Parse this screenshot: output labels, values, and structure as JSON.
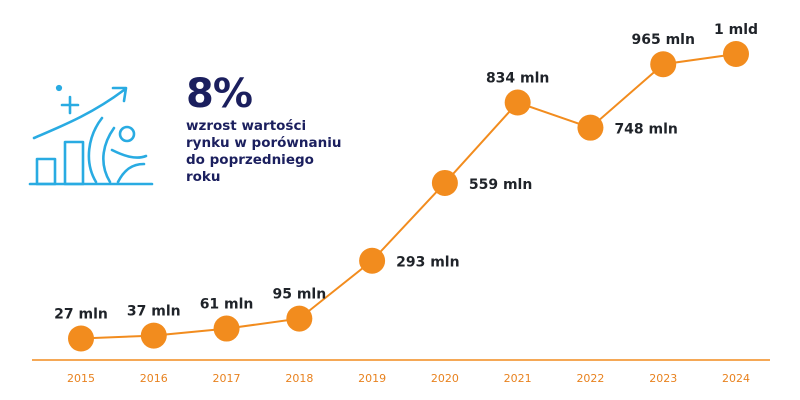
{
  "colors": {
    "accent": "#f28c1e",
    "axis": "#f28c1e",
    "line": "#f28c1e",
    "tick_text": "#e8821f",
    "label_text": "#1f2329",
    "headline": "#1b1f5e",
    "icon": "#29abe2"
  },
  "stat": {
    "value": "8%",
    "description_lines": [
      "wzrost wartości",
      "rynku w porównaniu",
      "do poprzedniego",
      "roku"
    ],
    "icon": "growth-chart-person-icon"
  },
  "chart_data": {
    "type": "line",
    "title": "",
    "xlabel": "",
    "ylabel": "",
    "categories": [
      "2015",
      "2016",
      "2017",
      "2018",
      "2019",
      "2020",
      "2021",
      "2022",
      "2023",
      "2024"
    ],
    "values": [
      27,
      37,
      61,
      95,
      293,
      559,
      834,
      748,
      965,
      1000
    ],
    "unit": "mln",
    "data_labels": [
      "27 mln",
      "37 mln",
      "61 mln",
      "95 mln",
      "293 mln",
      "559 mln",
      "834 mln",
      "748 mln",
      "965 mln",
      "1 mld"
    ],
    "label_positions": [
      "above",
      "above",
      "above",
      "above",
      "right",
      "right",
      "above",
      "right",
      "above",
      "above"
    ],
    "ylim": [
      0,
      1100
    ],
    "grid": false,
    "legend": "none"
  }
}
